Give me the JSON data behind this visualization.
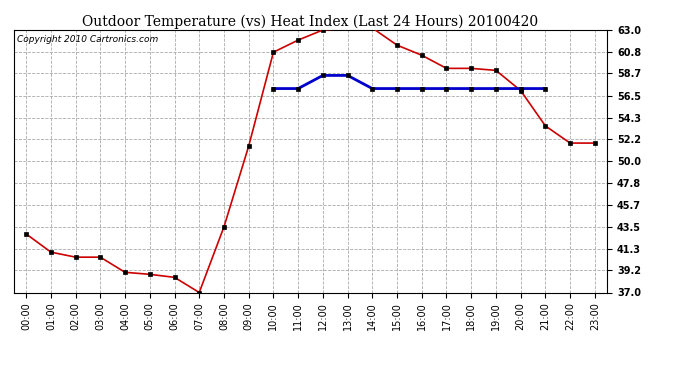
{
  "title": "Outdoor Temperature (vs) Heat Index (Last 24 Hours) 20100420",
  "copyright": "Copyright 2010 Cartronics.com",
  "x_labels": [
    "00:00",
    "01:00",
    "02:00",
    "03:00",
    "04:00",
    "05:00",
    "06:00",
    "07:00",
    "08:00",
    "09:00",
    "10:00",
    "11:00",
    "12:00",
    "13:00",
    "14:00",
    "15:00",
    "16:00",
    "17:00",
    "18:00",
    "19:00",
    "20:00",
    "21:00",
    "22:00",
    "23:00"
  ],
  "temp_values": [
    42.8,
    41.0,
    40.5,
    40.5,
    39.0,
    38.8,
    38.5,
    37.0,
    43.5,
    51.5,
    60.8,
    62.0,
    63.0,
    63.2,
    63.2,
    61.5,
    60.5,
    59.2,
    59.2,
    59.0,
    57.0,
    53.5,
    51.8,
    51.8
  ],
  "heat_values": [
    null,
    null,
    null,
    null,
    null,
    null,
    null,
    null,
    null,
    null,
    57.2,
    57.2,
    58.5,
    58.5,
    57.2,
    57.2,
    57.2,
    57.2,
    57.2,
    57.2,
    57.2,
    57.2,
    null,
    null
  ],
  "y_ticks": [
    37.0,
    39.2,
    41.3,
    43.5,
    45.7,
    47.8,
    50.0,
    52.2,
    54.3,
    56.5,
    58.7,
    60.8,
    63.0
  ],
  "ylim": [
    37.0,
    63.0
  ],
  "temp_color": "#cc0000",
  "heat_color": "#0000cc",
  "bg_color": "#ffffff",
  "grid_color": "#aaaaaa",
  "title_fontsize": 10,
  "copyright_fontsize": 6.5,
  "tick_fontsize": 7,
  "marker_size": 3
}
